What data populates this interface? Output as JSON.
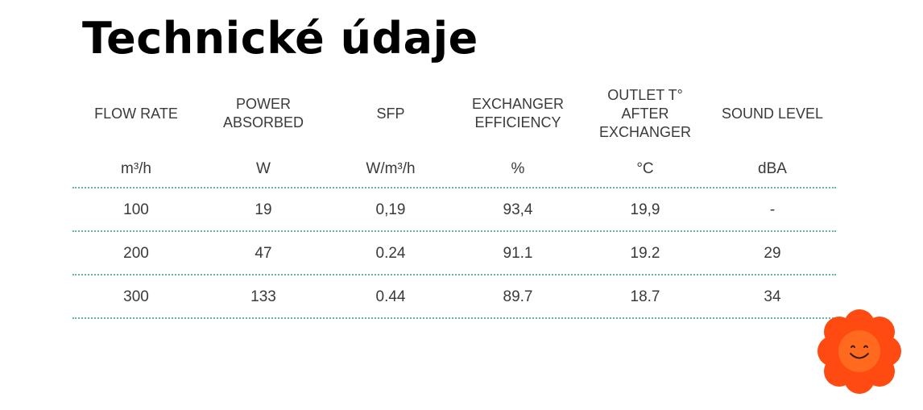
{
  "title": "Technické údaje",
  "table": {
    "headers": [
      "FLOW RATE",
      "POWER\nABSORBED",
      "SFP",
      "EXCHANGER\nEFFICIENCY",
      "OUTLET T°\nAFTER\nEXCHANGER",
      "SOUND LEVEL"
    ],
    "units": [
      "m³/h",
      "W",
      "W/m³/h",
      "%",
      "°C",
      "dBA"
    ],
    "rows": [
      [
        "100",
        "19",
        "0,19",
        "93,4",
        "19,9",
        "-"
      ],
      [
        "200",
        "47",
        "0.24",
        "91.1",
        "19.2",
        "29"
      ],
      [
        "300",
        "133",
        "0.44",
        "89.7",
        "18.7",
        "34"
      ]
    ]
  },
  "colors": {
    "divider": "#5fb8a3",
    "mascot_petals": "#ff4a12",
    "mascot_center": "#ff6a1e"
  },
  "mascot": {
    "icon": "smiling-flower-icon"
  }
}
